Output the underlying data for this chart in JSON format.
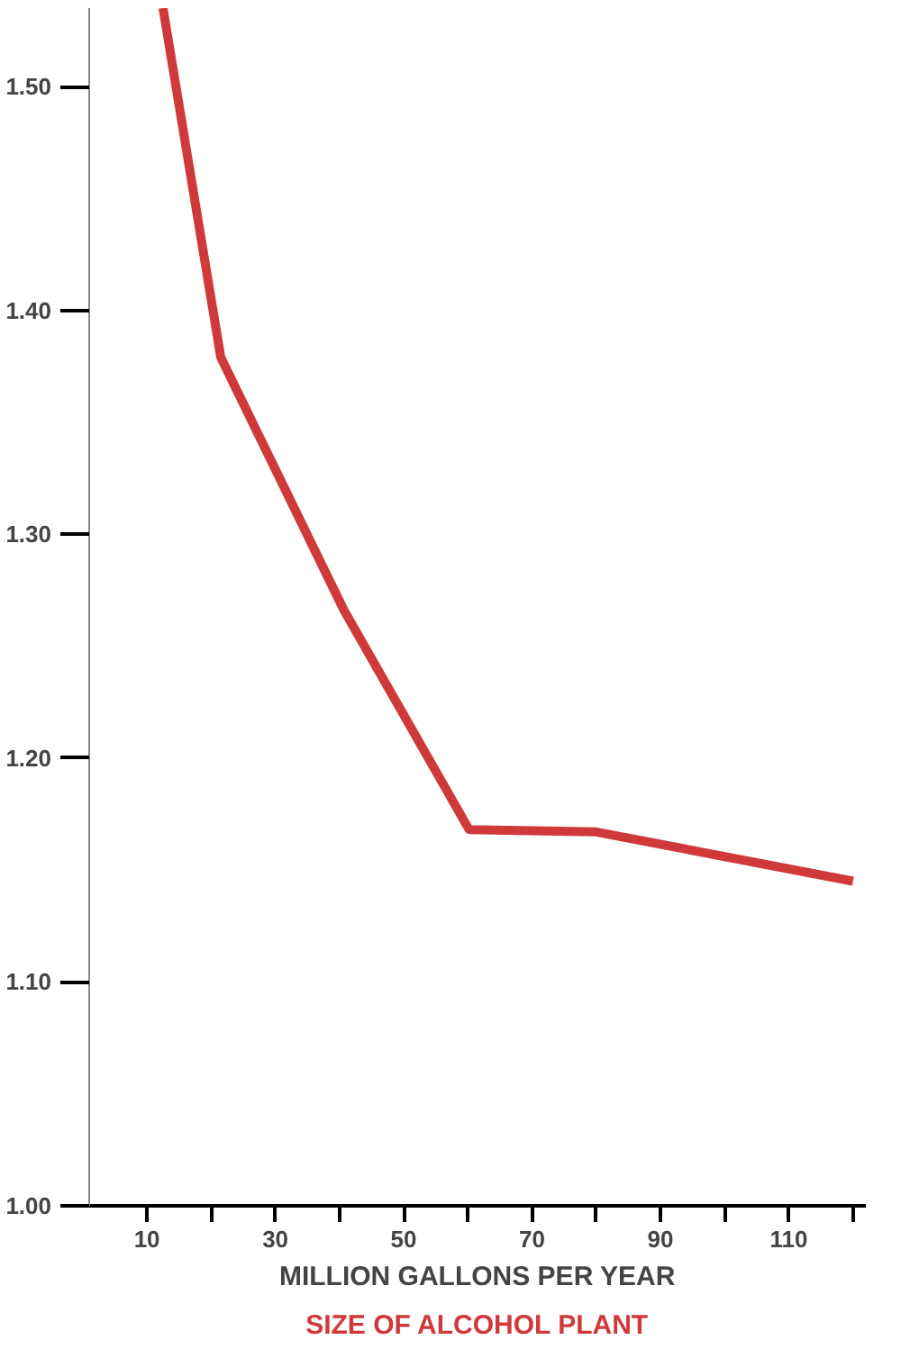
{
  "chart_data": {
    "type": "line",
    "xlabel": "MILLION GALLONS PER YEAR",
    "annotations": [
      "SIZE OF ALCOHOL PLANT"
    ],
    "x": [
      12.5,
      21.5,
      40.7,
      60.2,
      80,
      120
    ],
    "series": [
      {
        "color": "#d0393a",
        "values": [
          1.535,
          1.379,
          1.266,
          1.168,
          1.167,
          1.145
        ]
      }
    ],
    "xlim": [
      1,
      122
    ],
    "ylim": [
      1.0,
      1.535
    ],
    "xticks": [
      10,
      {
        "value": 20,
        "label": null
      },
      30,
      {
        "value": 40,
        "label": null
      },
      50,
      {
        "value": 60,
        "label": null
      },
      70,
      {
        "value": 80,
        "label": null
      },
      90,
      {
        "value": 100,
        "label": null
      },
      110,
      {
        "value": 120,
        "label": null
      }
    ],
    "yticks": [
      {
        "value": 1.0,
        "label": "1.00"
      },
      {
        "value": 1.1,
        "label": "1.10"
      },
      {
        "value": 1.2,
        "label": "1.20"
      },
      {
        "value": 1.3,
        "label": "1.30"
      },
      {
        "value": 1.4,
        "label": "1.40"
      },
      {
        "value": 1.5,
        "label": "1.50"
      }
    ],
    "grid": false,
    "marker": "none",
    "line_style": "solid"
  }
}
